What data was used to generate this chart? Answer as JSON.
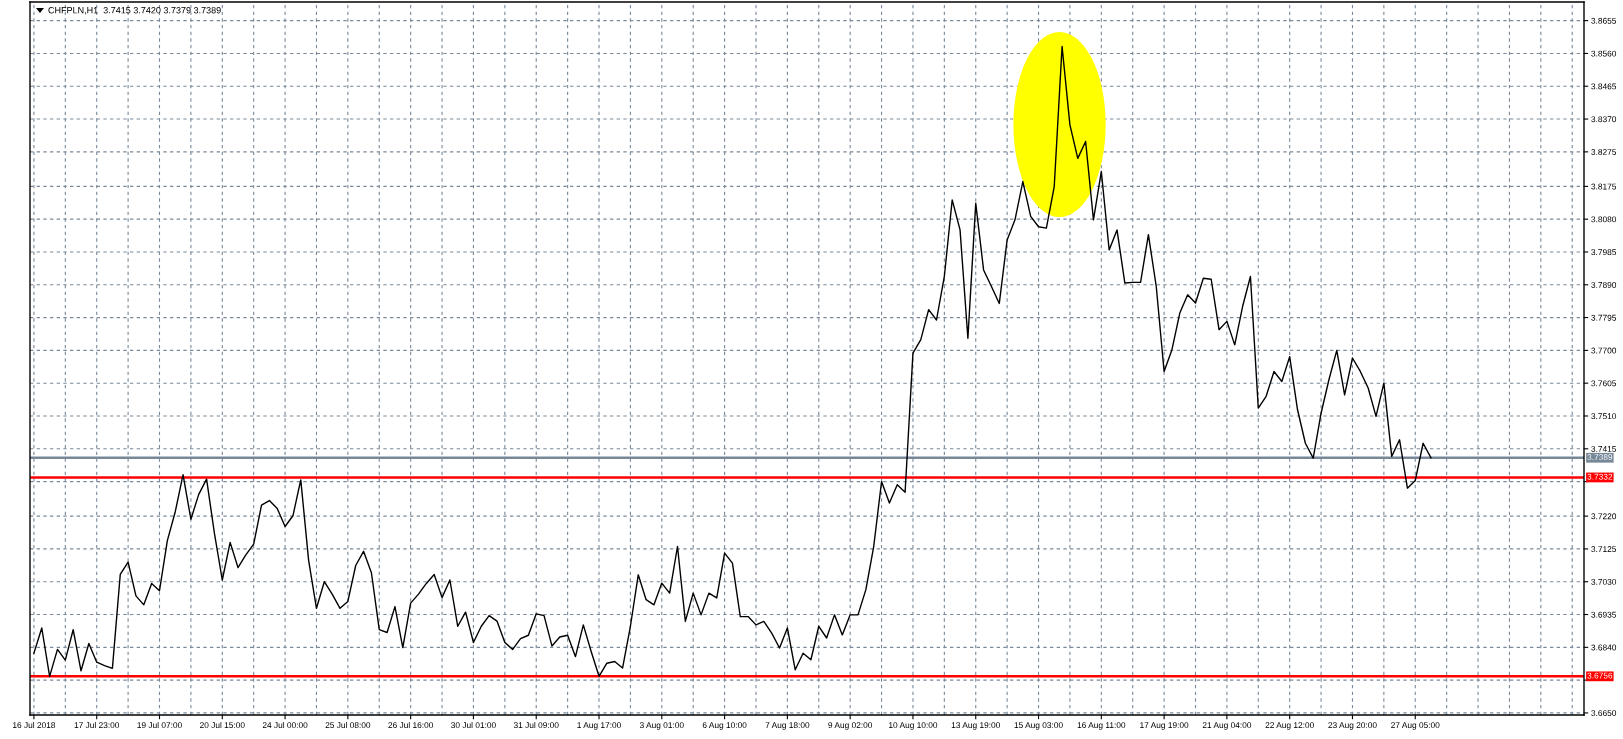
{
  "chart_data": {
    "type": "line",
    "title": "CHFPLN,H1  3.7415 3.7420 3.7379 3.7389",
    "categories": [
      "16 Jul 2018",
      null,
      null,
      null,
      null,
      null,
      null,
      null,
      "17 Jul 23:00",
      null,
      null,
      null,
      null,
      null,
      null,
      null,
      "19 Jul 07:00",
      null,
      null,
      null,
      null,
      null,
      null,
      null,
      "20 Jul 15:00",
      null,
      null,
      null,
      null,
      null,
      null,
      null,
      "24 Jul 00:00",
      null,
      null,
      null,
      null,
      null,
      null,
      null,
      "25 Jul 08:00",
      null,
      null,
      null,
      null,
      null,
      null,
      null,
      "26 Jul 16:00",
      null,
      null,
      null,
      null,
      null,
      null,
      null,
      "30 Jul 01:00",
      null,
      null,
      null,
      null,
      null,
      null,
      null,
      "31 Jul 09:00",
      null,
      null,
      null,
      null,
      null,
      null,
      null,
      "1 Aug 17:00",
      null,
      null,
      null,
      null,
      null,
      null,
      null,
      "3 Aug 01:00",
      null,
      null,
      null,
      null,
      null,
      null,
      null,
      "6 Aug 10:00",
      null,
      null,
      null,
      null,
      null,
      null,
      null,
      "7 Aug 18:00",
      null,
      null,
      null,
      null,
      null,
      null,
      null,
      "9 Aug 02:00",
      null,
      null,
      null,
      null,
      null,
      null,
      null,
      "10 Aug 10:00",
      null,
      null,
      null,
      null,
      null,
      null,
      null,
      "13 Aug 19:00",
      null,
      null,
      null,
      null,
      null,
      null,
      null,
      "15 Aug 03:00",
      null,
      null,
      null,
      null,
      null,
      null,
      null,
      "16 Aug 11:00",
      null,
      null,
      null,
      null,
      null,
      null,
      null,
      "17 Aug 19:00",
      null,
      null,
      null,
      null,
      null,
      null,
      null,
      "21 Aug 04:00",
      null,
      null,
      null,
      null,
      null,
      null,
      null,
      "22 Aug 12:00",
      null,
      null,
      null,
      null,
      null,
      null,
      null,
      "23 Aug 20:00",
      null,
      null,
      null,
      null,
      null,
      null,
      null,
      "27 Aug 05:00",
      null,
      null,
      null,
      null,
      null,
      null,
      null,
      null,
      null,
      null,
      null,
      null,
      null,
      null,
      null,
      null,
      null,
      null,
      null,
      null,
      null
    ],
    "series": [
      {
        "color": "#000000",
        "values": [
          3.6823,
          3.6896,
          3.6756,
          3.6834,
          3.6803,
          3.6891,
          3.6772,
          3.6851,
          3.6797,
          3.6787,
          3.6779,
          3.7051,
          3.7087,
          3.6989,
          3.6963,
          3.7025,
          3.7004,
          3.7149,
          3.7232,
          3.734,
          3.7211,
          3.7283,
          3.7327,
          3.717,
          3.7035,
          3.7144,
          3.7071,
          3.7108,
          3.7139,
          3.7252,
          3.7265,
          3.7242,
          3.719,
          3.7221,
          3.7325,
          3.7092,
          3.6953,
          3.703,
          3.6994,
          3.6953,
          3.6973,
          3.7077,
          3.7118,
          3.7056,
          3.6891,
          3.6883,
          3.6958,
          3.6839,
          3.6968,
          3.6994,
          3.7025,
          3.7051,
          3.6984,
          3.7035,
          3.6901,
          3.6942,
          3.6854,
          3.6901,
          3.6932,
          3.6916,
          3.6854,
          3.6834,
          3.6865,
          3.6875,
          3.6937,
          3.6932,
          3.6844,
          3.687,
          3.6875,
          3.6813,
          3.6905,
          3.6828,
          3.6756,
          3.6794,
          3.6799,
          3.678,
          3.6901,
          3.705,
          3.6978,
          3.6963,
          3.7026,
          3.6997,
          3.7132,
          3.6915,
          3.6997,
          3.6934,
          3.6997,
          3.6983,
          3.7113,
          3.7084,
          3.6929,
          3.6929,
          3.6905,
          3.6915,
          3.6881,
          3.6838,
          3.6896,
          3.6775,
          3.6823,
          3.6804,
          3.6901,
          3.6867,
          3.6934,
          3.6876,
          3.6934,
          3.6934,
          3.7007,
          3.7132,
          3.732,
          3.7258,
          3.7311,
          3.7289,
          3.7692,
          3.7731,
          3.7818,
          3.7788,
          3.7914,
          3.8136,
          3.8049,
          3.7735,
          3.8126,
          3.7933,
          3.7885,
          3.7836,
          3.802,
          3.8078,
          3.8189,
          3.8088,
          3.8058,
          3.8054,
          3.8174,
          3.858,
          3.8353,
          3.8256,
          3.8305,
          3.8078,
          3.8218,
          3.7991,
          3.8049,
          3.7895,
          3.7897,
          3.7897,
          3.8035,
          3.7885,
          3.7639,
          3.7702,
          3.7808,
          3.7861,
          3.7837,
          3.7909,
          3.7906,
          3.776,
          3.7784,
          3.7716,
          3.7827,
          3.7914,
          3.7533,
          3.7567,
          3.7639,
          3.761,
          3.7682,
          3.7528,
          3.7431,
          3.7388,
          3.7518,
          3.7615,
          3.77,
          3.7571,
          3.7678,
          3.7639,
          3.7591,
          3.7509,
          3.7605,
          3.7393,
          3.7441,
          3.7301,
          3.7323,
          3.7431,
          3.7389,
          null,
          null,
          null,
          null,
          null,
          null,
          null,
          null,
          null,
          null,
          null,
          null,
          null,
          null,
          null,
          null,
          null,
          null,
          null
        ]
      }
    ],
    "ylim": [
      3.6644,
      3.8709
    ],
    "yticks": [
      {
        "value": 3.665,
        "label": "3.6650"
      },
      {
        "value": 3.6745,
        "label": null
      },
      {
        "value": 3.684,
        "label": "3.6840"
      },
      {
        "value": 3.6935,
        "label": "3.6935"
      },
      {
        "value": 3.703,
        "label": "3.7030"
      },
      {
        "value": 3.7125,
        "label": "3.7125"
      },
      {
        "value": 3.722,
        "label": "3.7220"
      },
      {
        "value": 3.732,
        "label": null
      },
      {
        "value": 3.7415,
        "label": "3.7415"
      },
      {
        "value": 3.751,
        "label": "3.7510"
      },
      {
        "value": 3.7605,
        "label": "3.7605"
      },
      {
        "value": 3.77,
        "label": "3.7700"
      },
      {
        "value": 3.7795,
        "label": "3.7795"
      },
      {
        "value": 3.789,
        "label": "3.7890"
      },
      {
        "value": 3.7985,
        "label": "3.7985"
      },
      {
        "value": 3.808,
        "label": "3.8080"
      },
      {
        "value": 3.8175,
        "label": "3.8175"
      },
      {
        "value": 3.8275,
        "label": "3.8275"
      },
      {
        "value": 3.837,
        "label": "3.8370"
      },
      {
        "value": 3.8465,
        "label": "3.8465"
      },
      {
        "value": 3.856,
        "label": "3.8560"
      },
      {
        "value": 3.8655,
        "label": "3.8655"
      }
    ],
    "grid": true,
    "ref_lines": [
      {
        "axis": "y",
        "value": 3.7389,
        "label": "3.7389",
        "color": "#778899"
      },
      {
        "axis": "y",
        "value": 3.7332,
        "label": "3.7332",
        "color": "#ff0000"
      },
      {
        "axis": "y",
        "value": 3.6756,
        "label": "3.6756",
        "color": "#ff0000"
      }
    ]
  }
}
